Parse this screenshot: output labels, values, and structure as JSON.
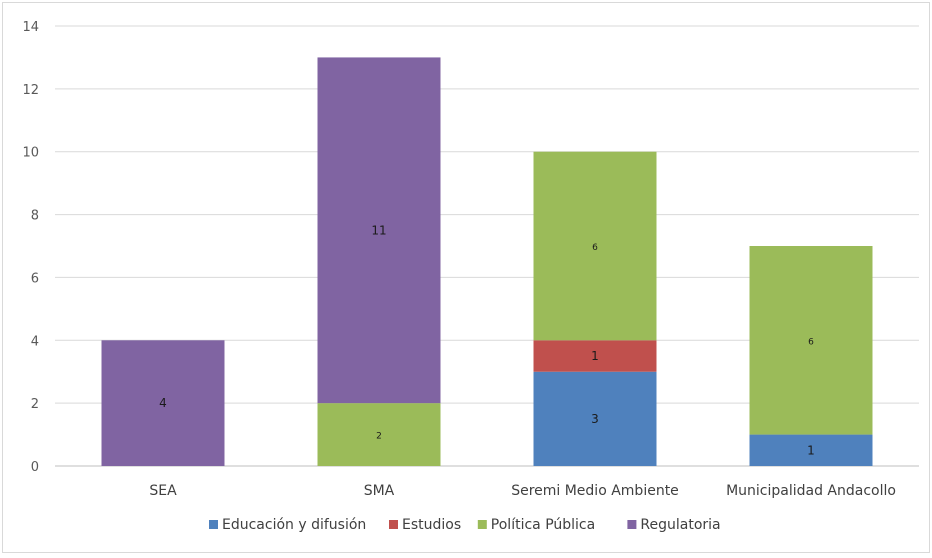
{
  "chart_data": {
    "type": "bar",
    "stacked": true,
    "title": "",
    "xlabel": "",
    "ylabel": "",
    "ylim": [
      0,
      14
    ],
    "yticks": [
      0,
      2,
      4,
      6,
      8,
      10,
      12,
      14
    ],
    "grid": true,
    "legend_position": "bottom",
    "categories": [
      "SEA",
      "SMA",
      "Seremi Medio Ambiente",
      "Municipalidad Andacollo"
    ],
    "series": [
      {
        "name": "Educación y difusión",
        "color": "#4f81bd",
        "values": [
          0,
          0,
          3,
          1
        ]
      },
      {
        "name": "Estudios",
        "color": "#c0504d",
        "values": [
          0,
          0,
          1,
          0
        ]
      },
      {
        "name": "Política Pública",
        "color": "#9bbb59",
        "values": [
          0,
          2,
          6,
          6
        ]
      },
      {
        "name": "Regulatoria",
        "color": "#8064a2",
        "values": [
          4,
          11,
          0,
          0
        ]
      }
    ]
  }
}
